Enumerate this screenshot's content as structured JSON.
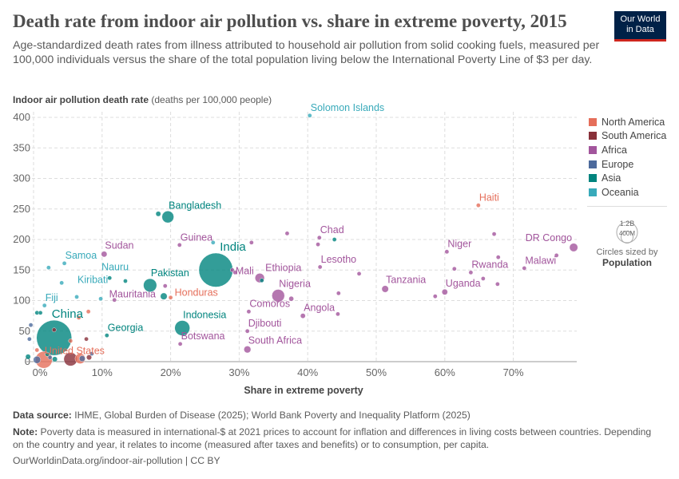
{
  "header": {
    "title": "Death rate from indoor air pollution vs. share in extreme poverty, 2015",
    "subtitle": "Age-standardized death rates from illness attributed to household air pollution from solid cooking fuels, measured per 100,000 individuals versus the share of the total population living below the International Poverty Line of $3 per day.",
    "logo_line1": "Our World",
    "logo_line2": "in Data"
  },
  "footer": {
    "source_label": "Data source:",
    "source": "IHME, Global Burden of Disease (2025); World Bank Poverty and Inequality Platform (2025)",
    "note_label": "Note:",
    "note": "Poverty data is measured in international-$ at 2021 prices to account for inflation and differences in living costs between countries. Depending on the country and year, it relates to income (measured after taxes and benefits) or to consumption, per capita.",
    "url": "OurWorldinData.org/indoor-air-pollution | CC BY"
  },
  "size_legend": {
    "big": "1.2B",
    "small": "400M",
    "caption": "Circles sized by",
    "variable": "Population"
  },
  "chart_data": {
    "type": "scatter",
    "title": "Death rate from indoor air pollution vs. share in extreme poverty, 2015",
    "ylabel_bold": "Indoor air pollution death rate",
    "ylabel_unit": "(deaths per 100,000 people)",
    "xlabel": "Share in extreme poverty",
    "xlim": [
      -1,
      79
    ],
    "ylim": [
      0,
      400
    ],
    "xticks": [
      "0%",
      "10%",
      "20%",
      "30%",
      "40%",
      "50%",
      "60%",
      "70%"
    ],
    "xtick_values": [
      0,
      10,
      20,
      30,
      40,
      50,
      60,
      70
    ],
    "yticks": [
      "0",
      "50",
      "100",
      "150",
      "200",
      "250",
      "300",
      "350",
      "400"
    ],
    "ytick_values": [
      0,
      50,
      100,
      150,
      200,
      250,
      300,
      350,
      400
    ],
    "grid": true,
    "legend_position": "right",
    "series": [
      {
        "name": "North America",
        "color": "#E56E5A"
      },
      {
        "name": "South America",
        "color": "#883039"
      },
      {
        "name": "Africa",
        "color": "#A2559C"
      },
      {
        "name": "Europe",
        "color": "#4C6A9C"
      },
      {
        "name": "Asia",
        "color": "#00847E"
      },
      {
        "name": "Oceania",
        "color": "#38AABA"
      }
    ],
    "points": [
      {
        "label": "Solomon Islands",
        "region": "Oceania",
        "x": 40.3,
        "y": 403,
        "pop": 0.6
      },
      {
        "label": "Haiti",
        "region": "North America",
        "x": 64.9,
        "y": 256,
        "pop": 10.7
      },
      {
        "label": "Bangladesh",
        "region": "Asia",
        "x": 19.6,
        "y": 237,
        "pop": 160
      },
      {
        "label": "",
        "region": "Asia",
        "x": 18.2,
        "y": 242,
        "pop": 29
      },
      {
        "label": "Chad",
        "region": "Africa",
        "x": 41.7,
        "y": 203,
        "pop": 14
      },
      {
        "label": "",
        "region": "Africa",
        "x": 41.5,
        "y": 192,
        "pop": 5
      },
      {
        "label": "",
        "region": "Asia",
        "x": 43.9,
        "y": 200,
        "pop": 3
      },
      {
        "label": "",
        "region": "Africa",
        "x": 37.0,
        "y": 210,
        "pop": 4
      },
      {
        "label": "Guinea",
        "region": "Africa",
        "x": 21.3,
        "y": 191,
        "pop": 11
      },
      {
        "label": "",
        "region": "Oceania",
        "x": 26.2,
        "y": 195,
        "pop": 8
      },
      {
        "label": "",
        "region": "Africa",
        "x": 31.8,
        "y": 195,
        "pop": 4
      },
      {
        "label": "Niger",
        "region": "Africa",
        "x": 60.3,
        "y": 180,
        "pop": 20
      },
      {
        "label": "DR Congo",
        "region": "Africa",
        "x": 78.8,
        "y": 187,
        "pop": 78
      },
      {
        "label": "Malawi",
        "region": "Africa",
        "x": 71.6,
        "y": 153,
        "pop": 17
      },
      {
        "label": "",
        "region": "Africa",
        "x": 76.3,
        "y": 174,
        "pop": 5
      },
      {
        "label": "",
        "region": "Africa",
        "x": 67.8,
        "y": 171,
        "pop": 5
      },
      {
        "label": "",
        "region": "Africa",
        "x": 67.2,
        "y": 209,
        "pop": 8
      },
      {
        "label": "",
        "region": "Africa",
        "x": 67.7,
        "y": 127,
        "pop": 8
      },
      {
        "label": "Rwanda",
        "region": "Africa",
        "x": 63.8,
        "y": 146,
        "pop": 11
      },
      {
        "label": "",
        "region": "Africa",
        "x": 61.4,
        "y": 152,
        "pop": 5
      },
      {
        "label": "",
        "region": "Africa",
        "x": 65.6,
        "y": 136,
        "pop": 5
      },
      {
        "label": "Uganda",
        "region": "Africa",
        "x": 60.0,
        "y": 114,
        "pop": 38
      },
      {
        "label": "",
        "region": "Africa",
        "x": 58.6,
        "y": 107,
        "pop": 5
      },
      {
        "label": "Tanzania",
        "region": "Africa",
        "x": 51.3,
        "y": 119,
        "pop": 52
      },
      {
        "label": "Lesotho",
        "region": "Africa",
        "x": 41.8,
        "y": 155,
        "pop": 2
      },
      {
        "label": "",
        "region": "Africa",
        "x": 47.5,
        "y": 144,
        "pop": 7
      },
      {
        "label": "Nigeria",
        "region": "Africa",
        "x": 35.7,
        "y": 108,
        "pop": 182
      },
      {
        "label": "",
        "region": "Africa",
        "x": 37.6,
        "y": 103,
        "pop": 27
      },
      {
        "label": "Ethiopia",
        "region": "Africa",
        "x": 33.0,
        "y": 137,
        "pop": 100
      },
      {
        "label": "",
        "region": "Asia",
        "x": 33.3,
        "y": 133,
        "pop": 4
      },
      {
        "label": "Mali",
        "region": "Africa",
        "x": 29.0,
        "y": 150,
        "pop": 17
      },
      {
        "label": "",
        "region": "Africa",
        "x": 29.4,
        "y": 146,
        "pop": 4
      },
      {
        "label": "India",
        "region": "Asia",
        "x": 26.6,
        "y": 150,
        "pop": 1310
      },
      {
        "label": "Angola",
        "region": "Africa",
        "x": 39.3,
        "y": 75,
        "pop": 28
      },
      {
        "label": "",
        "region": "Africa",
        "x": 44.4,
        "y": 78,
        "pop": 4
      },
      {
        "label": "",
        "region": "Africa",
        "x": 44.5,
        "y": 112,
        "pop": 4
      },
      {
        "label": "Comoros",
        "region": "Africa",
        "x": 31.4,
        "y": 82,
        "pop": 0.8
      },
      {
        "label": "Djibouti",
        "region": "Africa",
        "x": 31.2,
        "y": 50,
        "pop": 0.9
      },
      {
        "label": "South Africa",
        "region": "Africa",
        "x": 31.2,
        "y": 20,
        "pop": 55
      },
      {
        "label": "Botswana",
        "region": "Africa",
        "x": 21.4,
        "y": 29,
        "pop": 2.2
      },
      {
        "label": "Indonesia",
        "region": "Asia",
        "x": 21.7,
        "y": 55,
        "pop": 258
      },
      {
        "label": "Honduras",
        "region": "North America",
        "x": 20.0,
        "y": 105,
        "pop": 9
      },
      {
        "label": "Mauritania",
        "region": "Africa",
        "x": 11.8,
        "y": 101,
        "pop": 4
      },
      {
        "label": "",
        "region": "Africa",
        "x": 19.2,
        "y": 124,
        "pop": 4
      },
      {
        "label": "Pakistan",
        "region": "Asia",
        "x": 17.0,
        "y": 125,
        "pop": 199
      },
      {
        "label": "",
        "region": "Asia",
        "x": 19.0,
        "y": 107,
        "pop": 52
      },
      {
        "label": "Sudan",
        "region": "Africa",
        "x": 10.3,
        "y": 176,
        "pop": 38
      },
      {
        "label": "Samoa",
        "region": "Oceania",
        "x": 4.5,
        "y": 161,
        "pop": 0.2
      },
      {
        "label": "",
        "region": "Oceania",
        "x": 2.2,
        "y": 154,
        "pop": 0.3
      },
      {
        "label": "",
        "region": "Oceania",
        "x": 4.1,
        "y": 129,
        "pop": 0.3
      },
      {
        "label": "Kiribati",
        "region": "Oceania",
        "x": 6.3,
        "y": 106,
        "pop": 0.1
      },
      {
        "label": "Fiji",
        "region": "Oceania",
        "x": 1.6,
        "y": 92,
        "pop": 0.9
      },
      {
        "label": "Nauru",
        "region": "Oceania",
        "x": 9.8,
        "y": 103,
        "pop": 0.01
      },
      {
        "label": "Georgia",
        "region": "Asia",
        "x": 10.7,
        "y": 43,
        "pop": 3.7
      },
      {
        "label": "",
        "region": "Asia",
        "x": 11.1,
        "y": 137,
        "pop": 5
      },
      {
        "label": "",
        "region": "Asia",
        "x": 13.4,
        "y": 132,
        "pop": 5
      },
      {
        "label": "",
        "region": "Asia",
        "x": 1.0,
        "y": 80,
        "pop": 8
      },
      {
        "label": "",
        "region": "Asia",
        "x": 0.5,
        "y": 80,
        "pop": 20
      },
      {
        "label": "China",
        "region": "Asia",
        "x": 3.0,
        "y": 39,
        "pop": 1400
      },
      {
        "label": "United States",
        "region": "North America",
        "x": 1.5,
        "y": 3,
        "pop": 320
      },
      {
        "label": "",
        "region": "North America",
        "x": 6.6,
        "y": 72,
        "pop": 4
      },
      {
        "label": "",
        "region": "North America",
        "x": 8.0,
        "y": 82,
        "pop": 4
      },
      {
        "label": "",
        "region": "North America",
        "x": 5.4,
        "y": 34,
        "pop": 6
      },
      {
        "label": "",
        "region": "North America",
        "x": 6.8,
        "y": 5,
        "pop": 120
      },
      {
        "label": "",
        "region": "North America",
        "x": 0.5,
        "y": 19,
        "pop": 6
      },
      {
        "label": "",
        "region": "South America",
        "x": 7.7,
        "y": 37,
        "pop": 5
      },
      {
        "label": "",
        "region": "South America",
        "x": 5.4,
        "y": 4,
        "pop": 205
      },
      {
        "label": "",
        "region": "South America",
        "x": 8.1,
        "y": 7,
        "pop": 30
      },
      {
        "label": "",
        "region": "South America",
        "x": 3.0,
        "y": 52,
        "pop": 3
      },
      {
        "label": "",
        "region": "Europe",
        "x": -0.6,
        "y": 37,
        "pop": 4
      },
      {
        "label": "",
        "region": "Europe",
        "x": -0.4,
        "y": 60,
        "pop": 4
      },
      {
        "label": "",
        "region": "Europe",
        "x": 8.5,
        "y": 13,
        "pop": 4
      },
      {
        "label": "",
        "region": "Europe",
        "x": 7.1,
        "y": 5,
        "pop": 40
      },
      {
        "label": "",
        "region": "Europe",
        "x": 0.5,
        "y": 3,
        "pop": 60
      },
      {
        "label": "",
        "region": "Europe",
        "x": 2.4,
        "y": 7,
        "pop": 10
      },
      {
        "label": "",
        "region": "Asia",
        "x": -0.8,
        "y": 8,
        "pop": 30
      },
      {
        "label": "",
        "region": "Asia",
        "x": 3.1,
        "y": 4,
        "pop": 30
      },
      {
        "label": "",
        "region": "Asia",
        "x": 2.0,
        "y": 12,
        "pop": 6
      }
    ]
  }
}
